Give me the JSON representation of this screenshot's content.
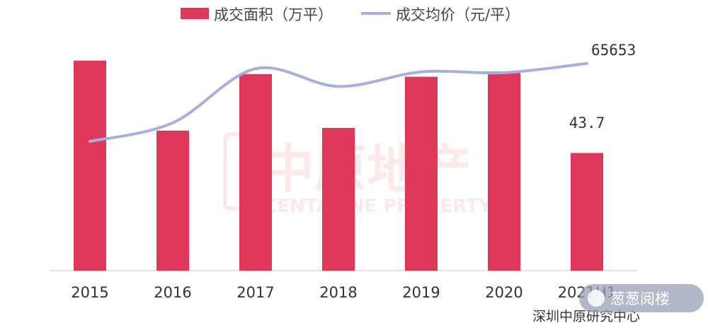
{
  "chart_data": {
    "type": "bar",
    "categories": [
      "2015",
      "2016",
      "2017",
      "2018",
      "2019",
      "2020",
      "2021H1"
    ],
    "series": [
      {
        "name": "成交面积（万平）",
        "type": "bar",
        "values": [
          78,
          52,
          73,
          53,
          72,
          74,
          43.7
        ],
        "color": "#e0385a"
      },
      {
        "name": "成交均价（元/平）",
        "type": "line",
        "values": [
          56000,
          58300,
          65000,
          62800,
          64600,
          64500,
          65653
        ],
        "color": "#a8aee0"
      }
    ],
    "data_labels": {
      "bar_last": "43.7",
      "line_last": "65653"
    },
    "ylim_bars": [
      0,
      90
    ],
    "ylim_line": [
      40000,
      70000
    ],
    "grid": false,
    "legend_position": "top"
  },
  "source": "深圳中原研究中心",
  "watermark": {
    "cn": "中原地产",
    "en": "CENTALINE PROPERTY"
  },
  "badge": "葱葱阅楼"
}
